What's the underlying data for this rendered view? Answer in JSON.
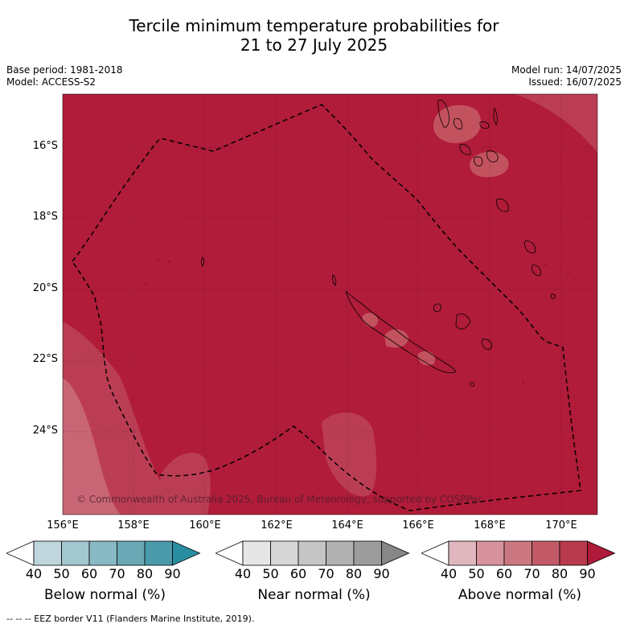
{
  "title_line1": "Tercile minimum temperature probabilities for",
  "title_line2": "21 to 27 July 2025",
  "base_period": "Base period: 1981-2018",
  "model": "Model: ACCESS-S2",
  "model_run": "Model run: 14/07/2025",
  "issued": "Issued: 16/07/2025",
  "lat_ticks": [
    "16°S",
    "18°S",
    "20°S",
    "22°S",
    "24°S"
  ],
  "lon_ticks": [
    "156°E",
    "158°E",
    "160°E",
    "162°E",
    "164°E",
    "166°E",
    "168°E",
    "170°E"
  ],
  "copyright": "© Commonwealth of Australia 2025, Bureau of Meteorology, supported by COSPPac",
  "legends": [
    {
      "title": "Below normal (%)",
      "colors": [
        "#ffffff",
        "#bed6dc",
        "#a3c8cf",
        "#89b9c3",
        "#6aa8b5",
        "#4a9aab",
        "#2a8ea2"
      ]
    },
    {
      "title": "Near normal (%)",
      "colors": [
        "#ffffff",
        "#e6e6e6",
        "#d7d7d7",
        "#c5c5c5",
        "#b1b1b1",
        "#9c9c9c",
        "#878787"
      ]
    },
    {
      "title": "Above normal (%)",
      "colors": [
        "#ffffff",
        "#e0b7bf",
        "#d6939d",
        "#cb7781",
        "#c25a68",
        "#b83a4d",
        "#b01a3a"
      ]
    }
  ],
  "legend_ticks": [
    "40",
    "50",
    "60",
    "70",
    "80",
    "90"
  ],
  "footer": "--  --  -- EEZ border V11 (Flanders Marine Institute, 2019)."
}
